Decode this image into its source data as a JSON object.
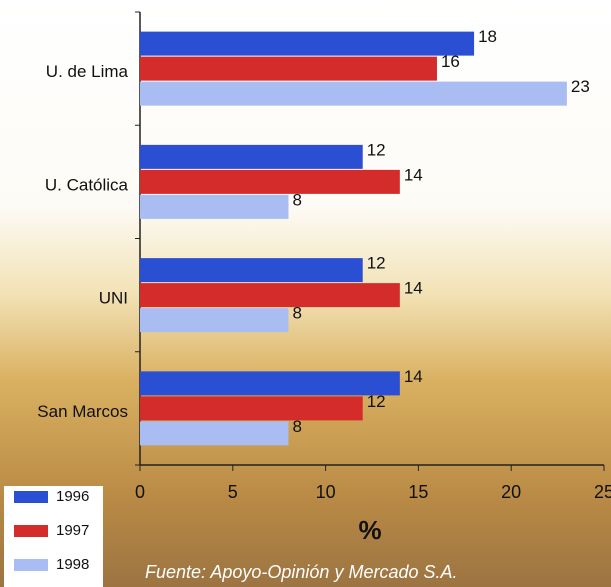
{
  "chart_data": {
    "type": "bar",
    "orientation": "horizontal",
    "categories": [
      "U. de Lima",
      "U. Católica",
      "UNI",
      "San Marcos"
    ],
    "series": [
      {
        "name": "1996",
        "color": "#2b4fd3",
        "values": [
          18,
          12,
          12,
          14
        ]
      },
      {
        "name": "1997",
        "color": "#d42b2b",
        "values": [
          16,
          14,
          14,
          12
        ]
      },
      {
        "name": "1998",
        "color": "#a9bdf2",
        "values": [
          23,
          8,
          8,
          8
        ]
      }
    ],
    "xlim": [
      0,
      25
    ],
    "xticks": [
      0,
      5,
      10,
      15,
      20,
      25
    ],
    "xlabel": "%",
    "source": "Fuente: Apoyo-Opinión y Mercado S.A.",
    "legend": "bottom-left"
  }
}
